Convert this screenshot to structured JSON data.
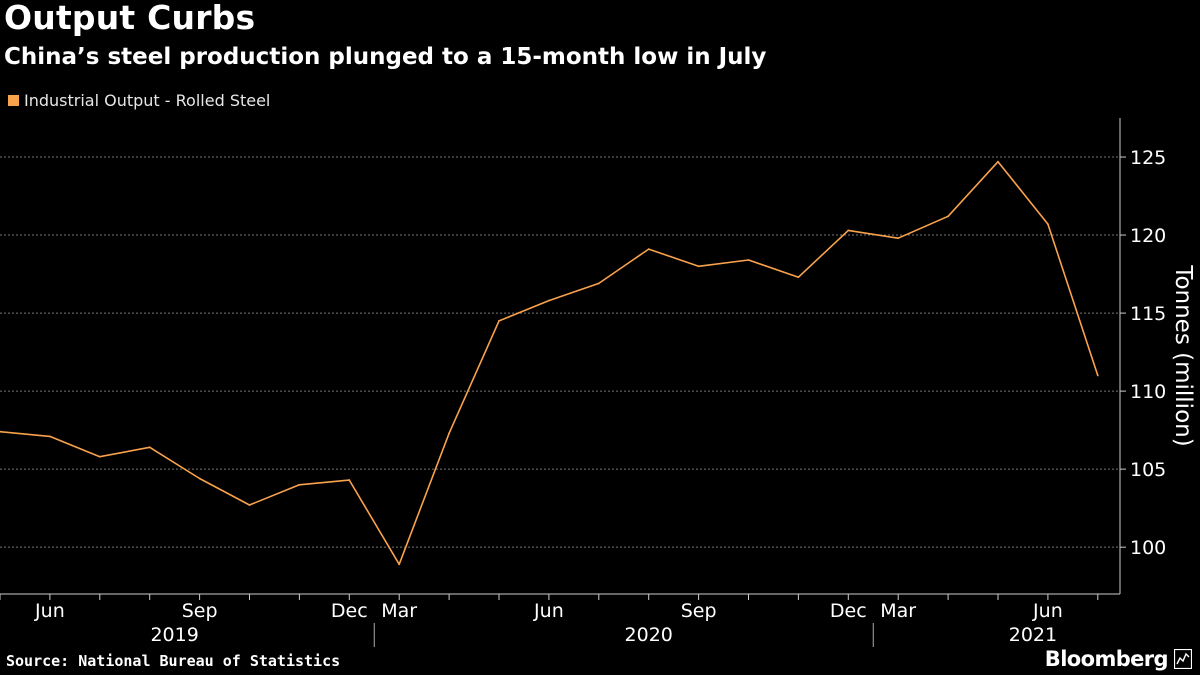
{
  "title": "Output Curbs",
  "subtitle": "China’s steel production plunged to a 15-month low in July",
  "legend": {
    "label": "Industrial Output - Rolled Steel"
  },
  "source": "Source: National Bureau of Statistics",
  "brand": {
    "name": "Bloomberg",
    "icon": "bloomberg-terminal-icon"
  },
  "colors": {
    "background": "#000000",
    "series": "#f9a24d",
    "grid": "#777777",
    "text": "#ffffff"
  },
  "chart_data": {
    "type": "line",
    "title": "Output Curbs",
    "subtitle": "China’s steel production plunged to a 15-month low in July",
    "xlabel": "",
    "ylabel": "Tonnes (million)",
    "ylim": [
      97,
      127.5
    ],
    "yticks": [
      100,
      105,
      110,
      115,
      120,
      125
    ],
    "grid": true,
    "legend_position": "top-left",
    "x": [
      "May 2019",
      "Jun 2019",
      "Jul 2019",
      "Aug 2019",
      "Sep 2019",
      "Oct 2019",
      "Nov 2019",
      "Dec 2019",
      "Mar 2020",
      "Apr 2020",
      "May 2020",
      "Jun 2020",
      "Jul 2020",
      "Aug 2020",
      "Sep 2020",
      "Oct 2020",
      "Nov 2020",
      "Dec 2020",
      "Mar 2021",
      "Apr 2021",
      "May 2021",
      "Jun 2021",
      "Jul 2021"
    ],
    "x_tick_labels": [
      {
        "index": 1,
        "label": "Jun"
      },
      {
        "index": 4,
        "label": "Sep"
      },
      {
        "index": 7,
        "label": "Dec"
      },
      {
        "index": 8,
        "label": "Mar"
      },
      {
        "index": 11,
        "label": "Jun"
      },
      {
        "index": 14,
        "label": "Sep"
      },
      {
        "index": 17,
        "label": "Dec"
      },
      {
        "index": 18,
        "label": "Mar"
      },
      {
        "index": 21,
        "label": "Jun"
      }
    ],
    "year_labels": [
      {
        "label": "2019",
        "center": 3.5
      },
      {
        "label": "2020",
        "center": 13
      },
      {
        "label": "2021",
        "center": 20.7
      }
    ],
    "year_separators": [
      7.5,
      17.5
    ],
    "series": [
      {
        "name": "Industrial Output - Rolled Steel",
        "values": [
          107.4,
          107.1,
          105.8,
          106.4,
          104.4,
          102.7,
          104.0,
          104.3,
          98.9,
          107.3,
          114.5,
          115.8,
          116.9,
          119.1,
          118.0,
          118.4,
          117.3,
          120.3,
          119.8,
          121.2,
          124.7,
          120.7,
          111.0
        ]
      }
    ]
  }
}
